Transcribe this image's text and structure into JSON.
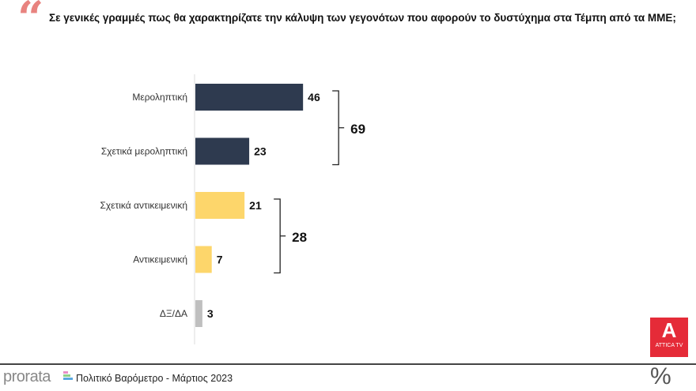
{
  "header": {
    "quote_icon": "quote-icon",
    "title": "Σε γενικές γραμμές πως θα χαρακτηρίζατε την κάλυψη των γεγονότων που αφορούν το δυστύχημα στα Τέμπη από τα ΜΜΕ;"
  },
  "chart_data": {
    "type": "bar",
    "orientation": "horizontal",
    "categories": [
      "Μεροληπτική",
      "Σχετικά μεροληπτική",
      "Σχετικά αντικειμενική",
      "Αντικειμενική",
      "ΔΞ/ΔΑ"
    ],
    "values": [
      46,
      23,
      21,
      7,
      3
    ],
    "colors": [
      "#2e3a4f",
      "#2e3a4f",
      "#fdd66b",
      "#fdd66b",
      "#bfbfbf"
    ],
    "groups": [
      {
        "members": [
          0,
          1
        ],
        "total": "69"
      },
      {
        "members": [
          2,
          3
        ],
        "total": "28"
      }
    ],
    "grid": false
  },
  "footer": {
    "brand": "prorata",
    "subtitle": "Πολιτικό Βαρόμετρο - Μάρτιος 2023",
    "unit": "%",
    "channel_logo": "ATTICA TV",
    "channel_letter": "A"
  }
}
